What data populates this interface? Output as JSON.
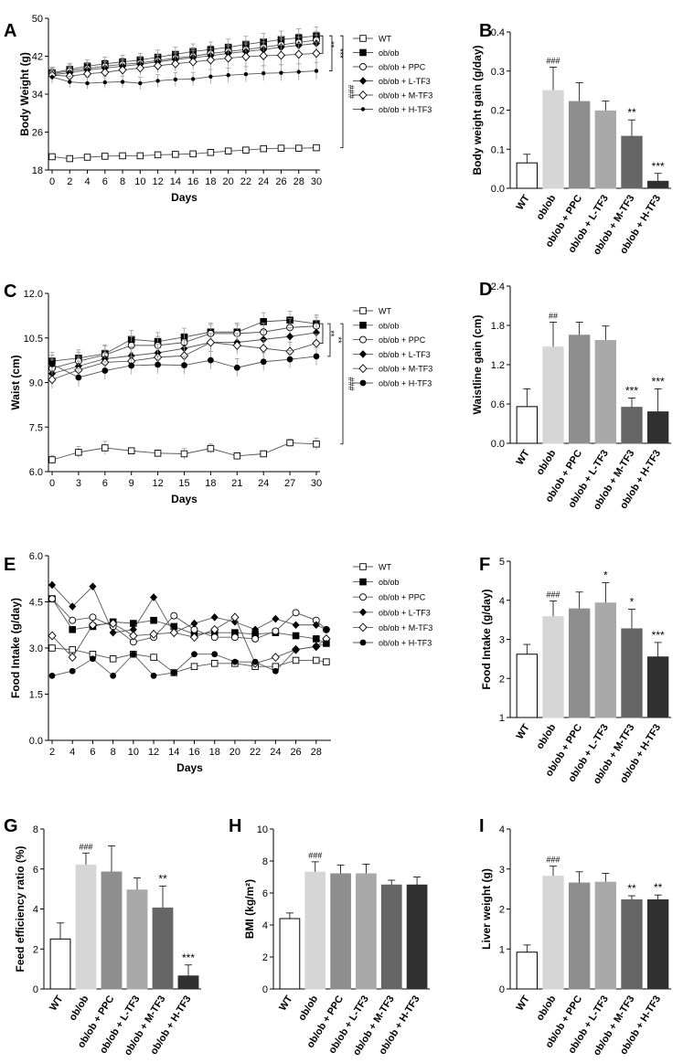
{
  "labels": {
    "sig_hash3": "###",
    "sig_hash2": "##",
    "sig_star3": "***",
    "sig_star2": "**",
    "sig_star1": "*"
  },
  "colors": {
    "WT": "#ffffff",
    "ob/ob": "#d6d6d6",
    "ob/ob + PPC": "#8e8e8e",
    "ob/ob + L-TF3": "#a9a9a9",
    "ob/ob + M-TF3": "#666666",
    "ob/ob + H-TF3": "#303030"
  },
  "chart_data": [
    {
      "panel": "A",
      "type": "line",
      "x": [
        0,
        2,
        4,
        6,
        8,
        10,
        12,
        14,
        16,
        18,
        20,
        22,
        24,
        26,
        28,
        30
      ],
      "xlabel": "Days",
      "ylabel": "Body Weight (g)",
      "ylim": [
        18,
        50
      ],
      "yticks": [
        18,
        26,
        34,
        42,
        50
      ],
      "xticks": [
        0,
        2,
        4,
        6,
        8,
        10,
        12,
        14,
        16,
        18,
        20,
        22,
        24,
        26,
        28,
        30
      ],
      "series": [
        {
          "name": "WT",
          "marker": "square-open",
          "values": [
            20.8,
            20.4,
            20.7,
            20.9,
            21.0,
            21.0,
            21.2,
            21.3,
            21.4,
            21.7,
            22.0,
            22.2,
            22.5,
            22.6,
            22.6,
            22.7
          ],
          "errors": [
            0.6,
            0.5,
            0.5,
            0.5,
            0.5,
            0.5,
            0.5,
            0.5,
            0.5,
            0.6,
            0.6,
            0.6,
            0.6,
            0.6,
            0.6,
            0.6
          ]
        },
        {
          "name": "ob/ob",
          "marker": "square-filled",
          "values": [
            38.5,
            39.2,
            39.9,
            40.4,
            40.8,
            41.2,
            41.8,
            42.4,
            43.0,
            43.4,
            43.9,
            44.5,
            45.0,
            45.5,
            45.9,
            46.3
          ],
          "errors": [
            1.2,
            1.3,
            1.3,
            1.4,
            1.4,
            1.4,
            1.5,
            1.5,
            1.6,
            1.6,
            1.7,
            1.7,
            1.8,
            1.8,
            1.9,
            1.9
          ]
        },
        {
          "name": "ob/ob + PPC",
          "marker": "circle-open",
          "values": [
            38.3,
            38.9,
            39.4,
            39.9,
            40.3,
            40.6,
            41.1,
            41.6,
            42.0,
            42.6,
            43.0,
            43.4,
            43.9,
            44.4,
            44.9,
            45.4
          ],
          "errors": [
            1.2,
            1.3,
            1.3,
            1.3,
            1.4,
            1.4,
            1.4,
            1.5,
            1.5,
            1.6,
            1.6,
            1.6,
            1.7,
            1.7,
            1.8,
            1.8
          ]
        },
        {
          "name": "ob/ob + L-TF3",
          "marker": "diamond-filled",
          "values": [
            38.1,
            38.5,
            39.1,
            39.5,
            39.9,
            40.3,
            40.8,
            41.3,
            41.7,
            42.1,
            42.6,
            43.0,
            43.4,
            43.9,
            44.3,
            44.7
          ],
          "errors": [
            1.2,
            1.2,
            1.3,
            1.3,
            1.3,
            1.4,
            1.4,
            1.4,
            1.5,
            1.5,
            1.6,
            1.6,
            1.6,
            1.7,
            1.7,
            1.8
          ]
        },
        {
          "name": "ob/ob + M-TF3",
          "marker": "diamond-open",
          "values": [
            38.0,
            37.8,
            38.3,
            38.6,
            39.1,
            39.5,
            40.0,
            40.4,
            40.8,
            41.2,
            41.6,
            41.9,
            42.1,
            42.2,
            42.4,
            42.6
          ],
          "errors": [
            1.2,
            1.3,
            1.3,
            1.4,
            1.4,
            1.5,
            1.5,
            1.6,
            1.7,
            1.8,
            1.9,
            2.0,
            2.1,
            2.2,
            2.3,
            2.4
          ]
        },
        {
          "name": "ob/ob + H-TF3",
          "marker": "circle-small-filled",
          "values": [
            37.6,
            36.6,
            36.3,
            36.5,
            36.6,
            36.3,
            36.8,
            37.1,
            37.2,
            37.7,
            38.0,
            38.2,
            38.4,
            38.5,
            38.7,
            38.9
          ],
          "errors": [
            1.3,
            1.2,
            1.2,
            1.2,
            1.2,
            1.3,
            1.3,
            1.4,
            1.4,
            1.5,
            1.5,
            1.6,
            1.6,
            1.7,
            1.7,
            1.8
          ]
        }
      ],
      "significance": [
        {
          "label": "**"
        },
        {
          "label": "***"
        },
        {
          "label": "###"
        }
      ]
    },
    {
      "panel": "B",
      "type": "bar",
      "categories": [
        "WT",
        "ob/ob",
        "ob/ob + PPC",
        "ob/ob + L-TF3",
        "ob/ob + M-TF3",
        "ob/ob + H-TF3"
      ],
      "values": [
        0.065,
        0.25,
        0.222,
        0.198,
        0.133,
        0.018
      ],
      "errors": [
        0.022,
        0.06,
        0.048,
        0.025,
        0.042,
        0.02
      ],
      "annotations": [
        "",
        "###",
        "",
        "",
        "**",
        "***"
      ],
      "ylabel": "Body weight gain (g/day)",
      "ylim": [
        0,
        0.4
      ],
      "yticks": [
        0.0,
        0.1,
        0.2,
        0.3,
        0.4
      ]
    },
    {
      "panel": "C",
      "type": "line",
      "x": [
        0,
        3,
        6,
        9,
        12,
        15,
        18,
        21,
        24,
        27,
        30
      ],
      "xlabel": "Days",
      "ylabel": "Waist (cm)",
      "ylim": [
        6.0,
        12.0
      ],
      "yticks": [
        6.0,
        7.5,
        9.0,
        10.5,
        12.0
      ],
      "xticks": [
        0,
        3,
        6,
        9,
        12,
        15,
        18,
        21,
        24,
        27,
        30
      ],
      "series": [
        {
          "name": "WT",
          "marker": "square-open",
          "values": [
            6.4,
            6.65,
            6.8,
            6.7,
            6.62,
            6.6,
            6.78,
            6.53,
            6.6,
            6.97,
            6.93
          ],
          "errors": [
            0.15,
            0.2,
            0.22,
            0.1,
            0.1,
            0.18,
            0.15,
            0.08,
            0.1,
            0.12,
            0.2
          ]
        },
        {
          "name": "ob/ob",
          "marker": "square-filled",
          "values": [
            9.72,
            9.82,
            9.97,
            10.45,
            10.38,
            10.53,
            10.7,
            10.7,
            11.05,
            11.1,
            10.98
          ],
          "errors": [
            0.3,
            0.28,
            0.3,
            0.3,
            0.3,
            0.3,
            0.3,
            0.3,
            0.3,
            0.3,
            0.3
          ]
        },
        {
          "name": "ob/ob + PPC",
          "marker": "circle-open",
          "values": [
            9.48,
            9.72,
            9.93,
            10.25,
            10.25,
            10.35,
            10.65,
            10.65,
            10.7,
            10.85,
            10.9
          ],
          "errors": [
            0.3,
            0.3,
            0.3,
            0.3,
            0.3,
            0.3,
            0.3,
            0.3,
            0.3,
            0.3,
            0.3
          ]
        },
        {
          "name": "ob/ob + L-TF3",
          "marker": "diamond-filled",
          "values": [
            9.3,
            9.55,
            9.8,
            9.9,
            10.0,
            10.15,
            10.35,
            10.35,
            10.45,
            10.55,
            10.68
          ],
          "errors": [
            0.3,
            0.3,
            0.3,
            0.3,
            0.3,
            0.3,
            0.3,
            0.3,
            0.3,
            0.3,
            0.3
          ]
        },
        {
          "name": "ob/ob + M-TF3",
          "marker": "diamond-open",
          "values": [
            9.1,
            9.42,
            9.68,
            9.72,
            9.85,
            9.9,
            10.35,
            10.25,
            10.15,
            10.05,
            10.32
          ],
          "errors": [
            0.3,
            0.3,
            0.3,
            0.3,
            0.3,
            0.3,
            0.3,
            0.3,
            0.3,
            0.3,
            0.3
          ]
        },
        {
          "name": "ob/ob + H-TF3",
          "marker": "circle-filled",
          "values": [
            9.62,
            9.17,
            9.4,
            9.57,
            9.6,
            9.58,
            9.75,
            9.5,
            9.7,
            9.78,
            9.88
          ],
          "errors": [
            0.3,
            0.3,
            0.3,
            0.3,
            0.3,
            0.3,
            0.3,
            0.3,
            0.3,
            0.3,
            0.3
          ]
        }
      ],
      "significance": [
        {
          "label": "**"
        },
        {
          "label": "**"
        },
        {
          "label": "###"
        }
      ]
    },
    {
      "panel": "D",
      "type": "bar",
      "categories": [
        "WT",
        "ob/ob",
        "ob/ob + PPC",
        "ob/ob + L-TF3",
        "ob/ob + M-TF3",
        "ob/ob + H-TF3"
      ],
      "values": [
        0.56,
        1.47,
        1.65,
        1.57,
        0.55,
        0.48
      ],
      "errors": [
        0.27,
        0.38,
        0.2,
        0.22,
        0.14,
        0.35
      ],
      "annotations": [
        "",
        "##",
        "",
        "",
        "***",
        "***"
      ],
      "ylabel": "Waistline gain (cm)",
      "ylim": [
        0,
        2.4
      ],
      "yticks": [
        0.0,
        0.6,
        1.2,
        1.8,
        2.4
      ]
    },
    {
      "panel": "E",
      "type": "line",
      "x": [
        2,
        4,
        6,
        8,
        10,
        12,
        14,
        16,
        18,
        20,
        22,
        24,
        26,
        28,
        29
      ],
      "xlabel": "Days",
      "ylabel": "Food Intake (g/day)",
      "ylim": [
        0.0,
        6.0
      ],
      "yticks": [
        0.0,
        1.5,
        3.0,
        4.5,
        6.0
      ],
      "xticks": [
        2,
        4,
        6,
        8,
        10,
        12,
        14,
        16,
        18,
        20,
        22,
        24,
        26,
        28
      ],
      "series": [
        {
          "name": "WT",
          "marker": "square-open",
          "values": [
            3.0,
            2.95,
            2.8,
            2.65,
            2.8,
            2.7,
            2.2,
            2.4,
            2.5,
            2.5,
            2.4,
            2.4,
            2.6,
            2.6,
            2.55
          ]
        },
        {
          "name": "ob/ob",
          "marker": "square-filled",
          "values": [
            4.6,
            3.6,
            3.7,
            3.85,
            3.8,
            3.9,
            3.7,
            3.45,
            3.5,
            3.5,
            3.45,
            3.5,
            3.4,
            3.3,
            3.15
          ]
        },
        {
          "name": "ob/ob + PPC",
          "marker": "circle-open",
          "values": [
            4.6,
            3.9,
            4.0,
            3.7,
            3.2,
            3.35,
            4.05,
            3.6,
            3.35,
            3.35,
            3.3,
            3.55,
            4.15,
            3.9,
            3.6
          ]
        },
        {
          "name": "ob/ob + L-TF3",
          "marker": "diamond-filled",
          "values": [
            5.05,
            4.35,
            5.0,
            3.5,
            3.6,
            4.65,
            3.5,
            3.8,
            4.0,
            3.85,
            3.6,
            3.95,
            3.75,
            3.75,
            3.6
          ]
        },
        {
          "name": "ob/ob + M-TF3",
          "marker": "diamond-open",
          "values": [
            3.4,
            2.7,
            3.75,
            3.8,
            3.4,
            3.45,
            3.5,
            3.35,
            3.6,
            4.0,
            2.5,
            2.7,
            2.95,
            3.05,
            3.3
          ]
        },
        {
          "name": "ob/ob + H-TF3",
          "marker": "circle-filled",
          "values": [
            2.1,
            2.25,
            2.65,
            2.1,
            2.8,
            2.1,
            2.2,
            2.8,
            2.8,
            2.55,
            2.55,
            2.25,
            2.95,
            3.05,
            3.15
          ]
        }
      ]
    },
    {
      "panel": "F",
      "type": "bar",
      "categories": [
        "WT",
        "ob/ob",
        "ob/ob + PPC",
        "ob/ob + L-TF3",
        "ob/ob + M-TF3",
        "ob/ob + H-TF3"
      ],
      "values": [
        2.62,
        3.58,
        3.78,
        3.93,
        3.27,
        2.55
      ],
      "errors": [
        0.25,
        0.4,
        0.43,
        0.52,
        0.5,
        0.37
      ],
      "annotations": [
        "",
        "###",
        "",
        "*",
        "*",
        "***"
      ],
      "ylabel": "Food Intake (g/day)",
      "ylim": [
        1,
        5
      ],
      "yticks": [
        1,
        2,
        3,
        4,
        5
      ]
    },
    {
      "panel": "G",
      "type": "bar",
      "categories": [
        "WT",
        "ob/ob",
        "ob/ob + PPC",
        "ob/ob + L-TF3",
        "ob/ob + M-TF3",
        "ob/ob + H-TF3"
      ],
      "values": [
        2.5,
        6.2,
        5.85,
        4.95,
        4.05,
        0.65
      ],
      "errors": [
        0.8,
        0.6,
        1.3,
        0.6,
        1.1,
        0.55
      ],
      "annotations": [
        "",
        "###",
        "",
        "",
        "**",
        "***"
      ],
      "ylabel": "Feed efficiency ratio (%)",
      "ylim": [
        0,
        8
      ],
      "yticks": [
        0,
        2,
        4,
        6,
        8
      ]
    },
    {
      "panel": "H",
      "type": "bar",
      "categories": [
        "WT",
        "ob/ob",
        "ob/ob + PPC",
        "ob/ob + L-TF3",
        "ob/ob + M-TF3",
        "ob/ob + H-TF3"
      ],
      "values": [
        4.4,
        7.3,
        7.2,
        7.2,
        6.5,
        6.5
      ],
      "errors": [
        0.35,
        0.65,
        0.55,
        0.6,
        0.3,
        0.5
      ],
      "annotations": [
        "",
        "###",
        "",
        "",
        "",
        ""
      ],
      "ylabel": "BMI (kg/m²)",
      "ylim": [
        0,
        10
      ],
      "yticks": [
        0.0,
        2.0,
        4.0,
        6.0,
        8.0,
        10.0
      ]
    },
    {
      "panel": "I",
      "type": "bar",
      "categories": [
        "WT",
        "ob/ob",
        "ob/ob + PPC",
        "ob/ob + L-TF3",
        "ob/ob + M-TF3",
        "ob/ob + H-TF3"
      ],
      "values": [
        0.92,
        2.82,
        2.65,
        2.67,
        2.23,
        2.23
      ],
      "errors": [
        0.18,
        0.25,
        0.28,
        0.22,
        0.1,
        0.12
      ],
      "annotations": [
        "",
        "###",
        "",
        "",
        "**",
        "**"
      ],
      "ylabel": "Liver weight (g)",
      "ylim": [
        0,
        4
      ],
      "yticks": [
        0,
        1,
        2,
        3,
        4
      ]
    }
  ]
}
